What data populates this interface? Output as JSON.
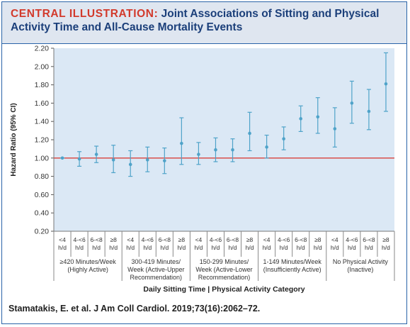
{
  "header": {
    "lead": "CENTRAL ILLUSTRATION:",
    "title": "Joint Associations of Sitting and Physical Activity Time and All-Cause Mortality Events"
  },
  "citation": "Stamatakis, E. et al. J Am Coll Cardiol. 2019;73(16):2062–72.",
  "colors": {
    "accent_red": "#d23a2c",
    "header_blue": "#1b3f7a",
    "header_bg": "#dfe6f0",
    "plot_bg": "#dbe8f5",
    "point": "#4fa3c9",
    "reference_line": "#d9423a"
  },
  "chart_data": {
    "type": "scatter",
    "title": "Joint Associations of Sitting and Physical Activity Time and All-Cause Mortality Events",
    "ylabel": "Hazard Ratio (95% CI)",
    "xlabel": "Daily Sitting Time | Physical Activity Category",
    "ylim": [
      0.2,
      2.2
    ],
    "yticks": [
      "2.20",
      "2.00",
      "1.80",
      "1.60",
      "1.40",
      "1.20",
      "1.00",
      "0.80",
      "0.60",
      "0.40",
      "0.20"
    ],
    "reference_line": 1.0,
    "grid": false,
    "sitting_labels": [
      {
        "top": "<4",
        "bottom": "h/d"
      },
      {
        "top": "4-<6",
        "bottom": "h/d"
      },
      {
        "top": "6-<8",
        "bottom": "h/d"
      },
      {
        "top": "≥8",
        "bottom": "h/d"
      }
    ],
    "groups": [
      {
        "lines": [
          "≥420 Minutes/Week",
          "(Highly Active)"
        ],
        "points": [
          {
            "hr": 1.0,
            "lo": 1.0,
            "hi": 1.0
          },
          {
            "hr": 0.99,
            "lo": 0.91,
            "hi": 1.07
          },
          {
            "hr": 1.04,
            "lo": 0.95,
            "hi": 1.13
          },
          {
            "hr": 0.98,
            "lo": 0.84,
            "hi": 1.14
          }
        ]
      },
      {
        "lines": [
          "300-419 Minutes/",
          "Week (Active-Upper",
          "Recommendation)"
        ],
        "points": [
          {
            "hr": 0.93,
            "lo": 0.8,
            "hi": 1.08
          },
          {
            "hr": 0.98,
            "lo": 0.85,
            "hi": 1.12
          },
          {
            "hr": 0.97,
            "lo": 0.83,
            "hi": 1.11
          },
          {
            "hr": 1.16,
            "lo": 0.93,
            "hi": 1.44
          }
        ]
      },
      {
        "lines": [
          "150-299 Minutes/",
          "Week (Active-Lower",
          "Recommendation)"
        ],
        "points": [
          {
            "hr": 1.04,
            "lo": 0.93,
            "hi": 1.17
          },
          {
            "hr": 1.09,
            "lo": 0.96,
            "hi": 1.22
          },
          {
            "hr": 1.09,
            "lo": 0.96,
            "hi": 1.21
          },
          {
            "hr": 1.27,
            "lo": 1.08,
            "hi": 1.5
          }
        ]
      },
      {
        "lines": [
          "1-149 Minutes/Week",
          "(Insufficiently Active)"
        ],
        "points": [
          {
            "hr": 1.12,
            "lo": 1.0,
            "hi": 1.25
          },
          {
            "hr": 1.21,
            "lo": 1.09,
            "hi": 1.34
          },
          {
            "hr": 1.43,
            "lo": 1.29,
            "hi": 1.57
          },
          {
            "hr": 1.45,
            "lo": 1.27,
            "hi": 1.66
          }
        ]
      },
      {
        "lines": [
          "No Physical Activity",
          "(Inactive)"
        ],
        "points": [
          {
            "hr": 1.32,
            "lo": 1.12,
            "hi": 1.55
          },
          {
            "hr": 1.6,
            "lo": 1.38,
            "hi": 1.84
          },
          {
            "hr": 1.51,
            "lo": 1.31,
            "hi": 1.75
          },
          {
            "hr": 1.81,
            "lo": 1.51,
            "hi": 2.15
          }
        ]
      }
    ]
  }
}
